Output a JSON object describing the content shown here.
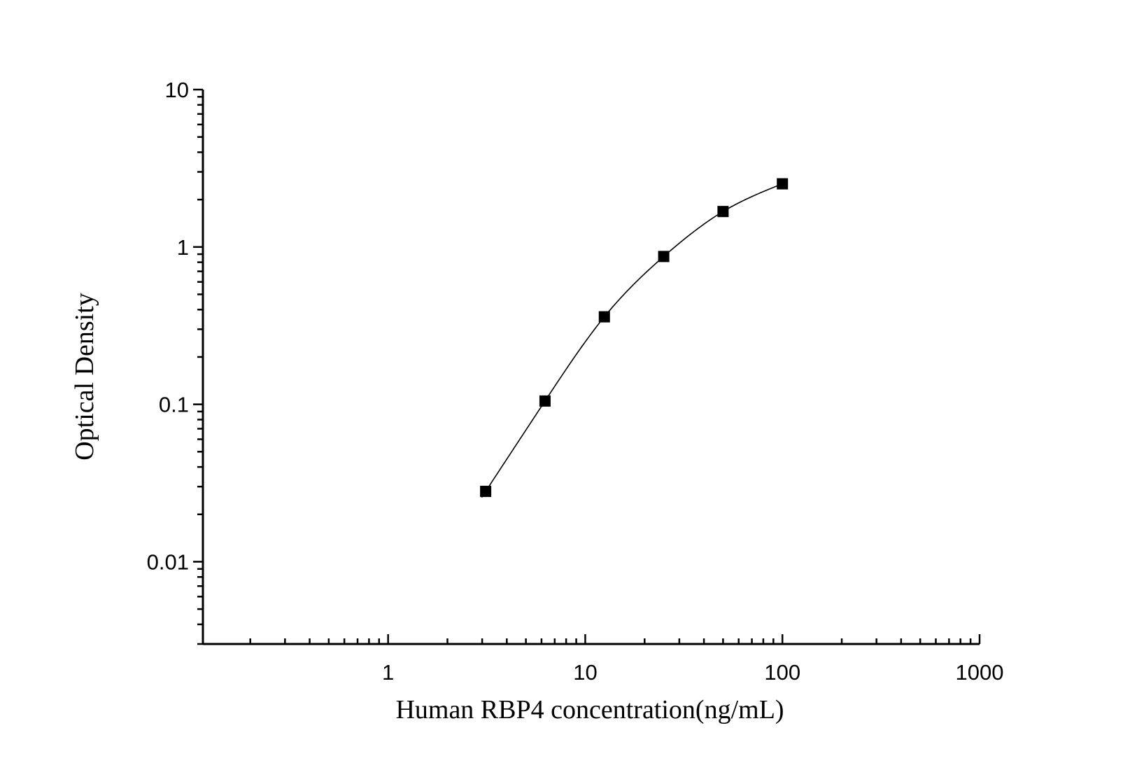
{
  "chart_data": {
    "type": "scatter",
    "title": "",
    "xlabel": "Human RBP4 concentration(ng/mL)",
    "ylabel": "Optical Density",
    "x_scale": "log",
    "y_scale": "log",
    "xlim": [
      0.115,
      1000
    ],
    "ylim": [
      0.003,
      10
    ],
    "x_ticks": [
      1,
      10,
      100,
      1000
    ],
    "x_tick_labels": [
      "1",
      "10",
      "100",
      "1000"
    ],
    "y_ticks": [
      0.01,
      0.1,
      1,
      10
    ],
    "y_tick_labels": [
      "0.01",
      "0.1",
      "1",
      "10"
    ],
    "grid": false,
    "legend": "none",
    "series": [
      {
        "marker": "square",
        "color": "#000000",
        "fit_line": true,
        "points": [
          {
            "x": 3.125,
            "y": 0.028
          },
          {
            "x": 6.25,
            "y": 0.105
          },
          {
            "x": 12.5,
            "y": 0.36
          },
          {
            "x": 25,
            "y": 0.87
          },
          {
            "x": 50,
            "y": 1.68
          },
          {
            "x": 100,
            "y": 2.52
          }
        ]
      }
    ]
  }
}
